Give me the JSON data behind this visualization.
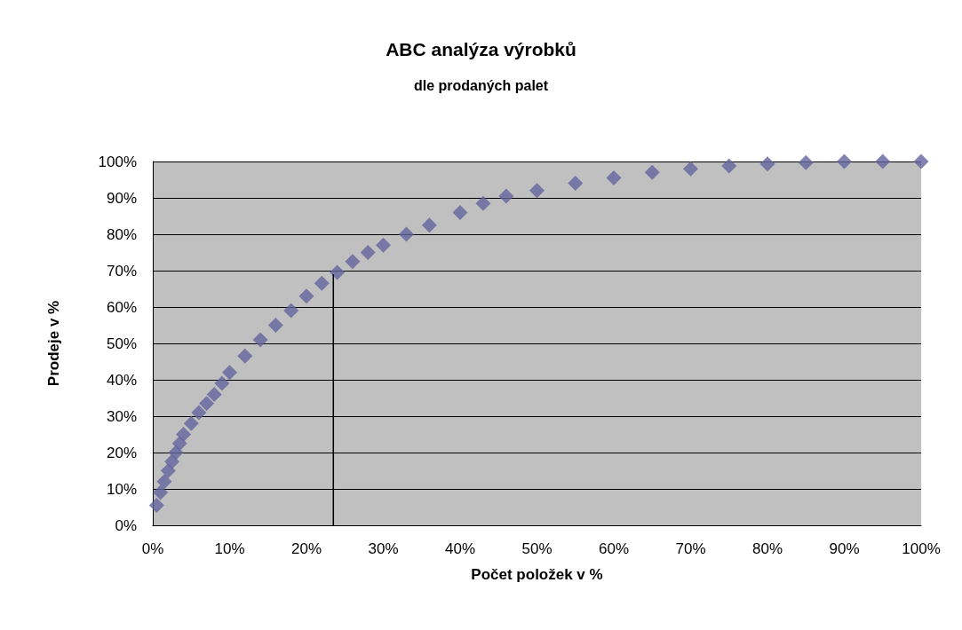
{
  "chart_data": {
    "type": "scatter",
    "title": "ABC analýza výrobků",
    "subtitle": "dle prodaných palet",
    "xlabel": "Počet položek v %",
    "ylabel": "Prodeje v %",
    "xlim": [
      0,
      100
    ],
    "ylim": [
      0,
      100
    ],
    "xticks": [
      {
        "value": 0,
        "label": "0%"
      },
      {
        "value": 10,
        "label": "10%"
      },
      {
        "value": 20,
        "label": "20%"
      },
      {
        "value": 30,
        "label": "30%"
      },
      {
        "value": 40,
        "label": "40%"
      },
      {
        "value": 50,
        "label": "50%"
      },
      {
        "value": 60,
        "label": "60%"
      },
      {
        "value": 70,
        "label": "70%"
      },
      {
        "value": 80,
        "label": "80%"
      },
      {
        "value": 90,
        "label": "90%"
      },
      {
        "value": 100,
        "label": "100%"
      }
    ],
    "yticks": [
      {
        "value": 0,
        "label": "0%"
      },
      {
        "value": 10,
        "label": "10%"
      },
      {
        "value": 20,
        "label": "20%"
      },
      {
        "value": 30,
        "label": "30%"
      },
      {
        "value": 40,
        "label": "40%"
      },
      {
        "value": 50,
        "label": "50%"
      },
      {
        "value": 60,
        "label": "60%"
      },
      {
        "value": 70,
        "label": "70%"
      },
      {
        "value": 80,
        "label": "80%"
      },
      {
        "value": 90,
        "label": "90%"
      },
      {
        "value": 100,
        "label": "100%"
      }
    ],
    "grid": "y",
    "marker": "diamond",
    "series": [
      {
        "color": "#64649e",
        "x": [
          0.5,
          1,
          1.5,
          2,
          2.5,
          3,
          3.5,
          4,
          5,
          6,
          7,
          8,
          9,
          10,
          12,
          14,
          16,
          18,
          20,
          22,
          24,
          26,
          28,
          30,
          33,
          36,
          40,
          43,
          46,
          50,
          55,
          60,
          65,
          70,
          75,
          80,
          85,
          90,
          95,
          100
        ],
        "values": [
          5.5,
          9,
          12,
          15,
          17.5,
          20,
          22.5,
          25,
          28,
          31,
          33.5,
          36,
          39,
          42,
          46.5,
          51,
          55,
          59,
          63,
          66.5,
          69.5,
          72.5,
          75,
          77,
          80,
          82.5,
          86,
          88.5,
          90.5,
          92,
          94,
          95.5,
          97,
          98,
          98.8,
          99.3,
          99.7,
          100,
          100,
          100
        ]
      },
      {
        "type": "line",
        "color": "#000000",
        "marker": "none",
        "line_style": "solid",
        "x": [
          23.5,
          23.5
        ],
        "values": [
          0,
          69
        ]
      }
    ]
  }
}
